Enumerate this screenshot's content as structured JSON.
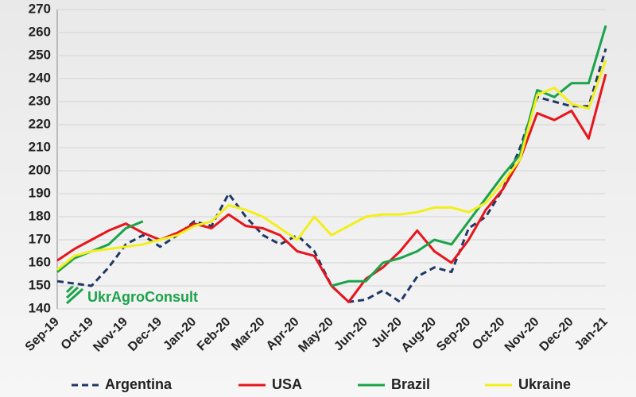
{
  "chart_data": {
    "type": "line",
    "annotation": "UkrAgroConsult",
    "categories": [
      "Sep-19",
      null,
      "Oct-19",
      null,
      "Nov-19",
      null,
      "Dec-19",
      null,
      "Jan-20",
      null,
      "Feb-20",
      null,
      "Mar-20",
      null,
      "Apr-20",
      null,
      "May-20",
      null,
      "Jun-20",
      null,
      "Jul-20",
      null,
      "Aug-20",
      null,
      "Sep-20",
      null,
      "Oct-20",
      null,
      "Nov-20",
      null,
      "Dec-20",
      null,
      "Jan-21"
    ],
    "series": [
      {
        "name": "Argentina",
        "color": "#1f3864",
        "dashed": true,
        "values": [
          152,
          151,
          150,
          158,
          168,
          172,
          167,
          172,
          178,
          176,
          190,
          180,
          172,
          168,
          172,
          165,
          150,
          143,
          144,
          148,
          143,
          154,
          158,
          156,
          175,
          180,
          192,
          210,
          232,
          230,
          228,
          228,
          253
        ]
      },
      {
        "name": "USA",
        "color": "#e8141b",
        "dashed": false,
        "values": [
          161,
          166,
          170,
          174,
          177,
          173,
          170,
          173,
          177,
          175,
          181,
          176,
          175,
          172,
          165,
          163,
          150,
          143,
          153,
          158,
          165,
          174,
          165,
          160,
          170,
          183,
          192,
          205,
          225,
          222,
          226,
          214,
          242
        ]
      },
      {
        "name": "Brazil",
        "color": "#1aa34a",
        "dashed": false,
        "values": [
          156,
          162,
          165,
          168,
          175,
          178,
          null,
          null,
          null,
          null,
          null,
          null,
          null,
          null,
          null,
          null,
          150,
          152,
          152,
          160,
          162,
          165,
          170,
          168,
          178,
          188,
          198,
          207,
          235,
          232,
          238,
          238,
          263
        ]
      },
      {
        "name": "Ukraine",
        "color": "#f2ef1a",
        "dashed": false,
        "values": [
          157,
          163,
          165,
          166,
          167,
          168,
          170,
          172,
          176,
          178,
          185,
          183,
          180,
          175,
          170,
          180,
          172,
          176,
          180,
          181,
          181,
          182,
          184,
          184,
          182,
          186,
          195,
          205,
          233,
          236,
          229,
          227,
          248
        ]
      }
    ],
    "ylim": [
      140,
      270
    ],
    "yticks": [
      140,
      150,
      160,
      170,
      180,
      190,
      200,
      210,
      220,
      230,
      240,
      250,
      260,
      270
    ],
    "grid": true
  }
}
